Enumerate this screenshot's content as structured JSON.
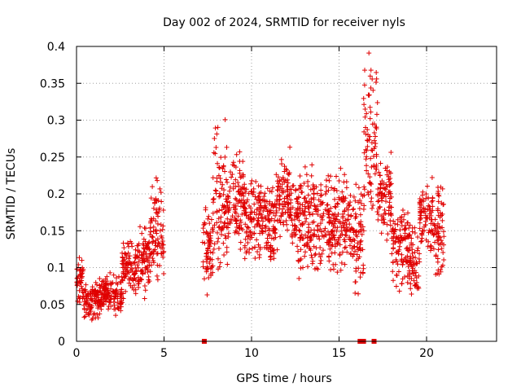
{
  "chart_data": {
    "type": "scatter",
    "title": "Day 002 of 2024, SRMTID for receiver nyls",
    "xlabel": "GPS time / hours",
    "ylabel": "SRMTID / TECUs",
    "xlim": [
      0,
      24
    ],
    "ylim": [
      0,
      0.4
    ],
    "grid": true,
    "marker": "plus",
    "color": "#e00000",
    "x_ticks": [
      0,
      5,
      10,
      15,
      20
    ],
    "y_ticks": [
      0,
      0.05,
      0.1,
      0.15,
      0.2,
      0.25,
      0.3,
      0.35,
      0.4
    ],
    "x_tick_labels": [
      "0",
      "5",
      "10",
      "15",
      "20"
    ],
    "y_tick_labels": [
      "0",
      "0.05",
      "0.1",
      "0.15",
      "0.2",
      "0.25",
      "0.3",
      "0.35",
      "0.4"
    ],
    "zero_markers": [
      7.3,
      16.2,
      16.4,
      17.0
    ],
    "series_profile": [
      {
        "start": 0.0,
        "end": 0.4,
        "low": 0.04,
        "high": 0.13
      },
      {
        "start": 0.4,
        "end": 1.5,
        "low": 0.025,
        "high": 0.09
      },
      {
        "start": 1.5,
        "end": 2.6,
        "low": 0.03,
        "high": 0.1
      },
      {
        "start": 2.6,
        "end": 3.4,
        "low": 0.05,
        "high": 0.15
      },
      {
        "start": 3.4,
        "end": 4.2,
        "low": 0.06,
        "high": 0.17
      },
      {
        "start": 4.2,
        "end": 5.0,
        "low": 0.06,
        "high": 0.24
      },
      {
        "start": 7.2,
        "end": 7.8,
        "low": 0.04,
        "high": 0.21
      },
      {
        "start": 7.8,
        "end": 8.6,
        "low": 0.06,
        "high": 0.31
      },
      {
        "start": 8.6,
        "end": 9.6,
        "low": 0.1,
        "high": 0.28
      },
      {
        "start": 9.6,
        "end": 11.5,
        "low": 0.09,
        "high": 0.24
      },
      {
        "start": 11.5,
        "end": 12.3,
        "low": 0.12,
        "high": 0.27
      },
      {
        "start": 12.3,
        "end": 14.5,
        "low": 0.07,
        "high": 0.26
      },
      {
        "start": 14.5,
        "end": 15.8,
        "low": 0.07,
        "high": 0.25
      },
      {
        "start": 15.8,
        "end": 16.4,
        "low": 0.03,
        "high": 0.26
      },
      {
        "start": 16.4,
        "end": 17.2,
        "low": 0.13,
        "high": 0.4
      },
      {
        "start": 17.2,
        "end": 18.0,
        "low": 0.13,
        "high": 0.26
      },
      {
        "start": 18.0,
        "end": 19.0,
        "low": 0.06,
        "high": 0.2
      },
      {
        "start": 19.0,
        "end": 19.6,
        "low": 0.05,
        "high": 0.16
      },
      {
        "start": 19.6,
        "end": 20.4,
        "low": 0.11,
        "high": 0.23
      },
      {
        "start": 20.4,
        "end": 21.0,
        "low": 0.05,
        "high": 0.26
      }
    ]
  }
}
